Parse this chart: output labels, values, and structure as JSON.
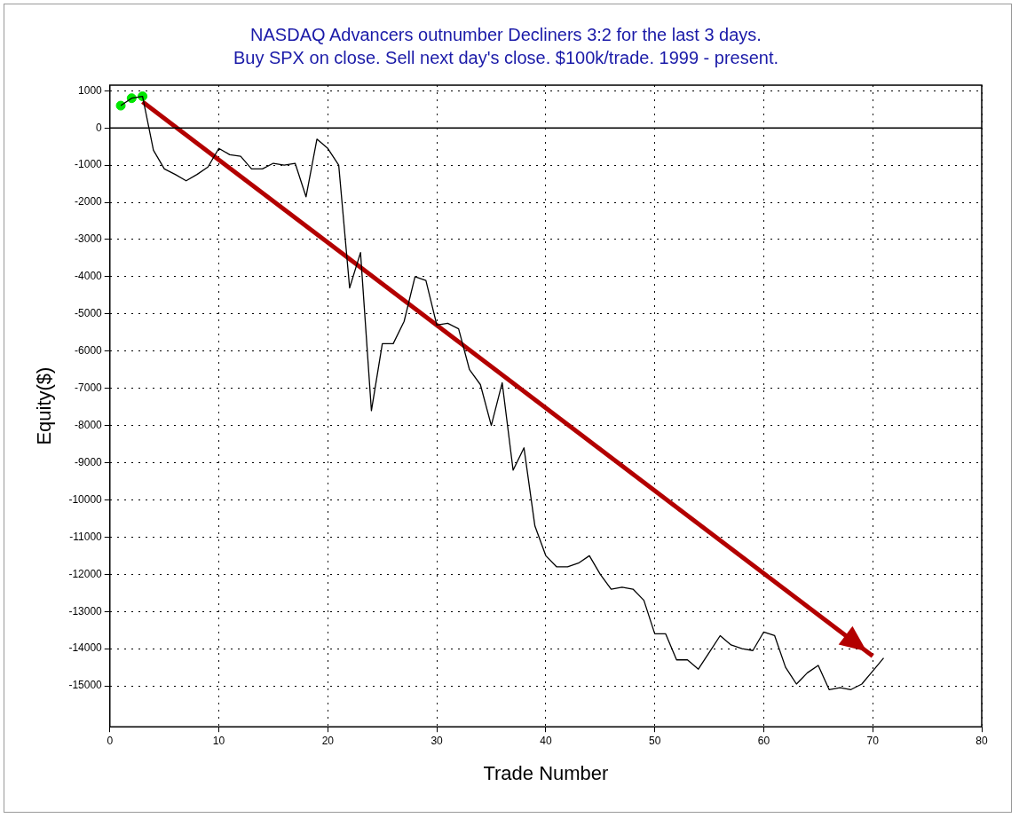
{
  "chart_data": {
    "type": "line",
    "title": "NASDAQ Advancers outnumber Decliners 3:2 for the last 3 days.",
    "subtitle": "Buy SPX on close. Sell next day's close. $100k/trade. 1999 - present.",
    "xlabel": "Trade Number",
    "ylabel": "Equity($)",
    "xlim": [
      0,
      80
    ],
    "xticks": [
      0,
      10,
      20,
      30,
      40,
      50,
      60,
      70,
      80
    ],
    "ylim": [
      -16100,
      1150
    ],
    "yticks": [
      1000,
      0,
      -1000,
      -2000,
      -3000,
      -4000,
      -5000,
      -6000,
      -7000,
      -8000,
      -9000,
      -10000,
      -11000,
      -12000,
      -13000,
      -14000,
      -15000
    ],
    "grid": true,
    "legend": false,
    "line_style": "solid",
    "ref_lines": [
      {
        "axis": "y",
        "value": 0,
        "color": "#000000",
        "line_style": "solid"
      }
    ],
    "series": [
      {
        "type": "line",
        "color": "#000000",
        "marker": "none",
        "x": [
          1,
          2,
          3,
          4,
          5,
          6,
          7,
          8,
          9,
          10,
          11,
          12,
          13,
          14,
          15,
          16,
          17,
          18,
          19,
          20,
          21,
          22,
          23,
          24,
          25,
          26,
          27,
          28,
          29,
          30,
          31,
          32,
          33,
          34,
          35,
          36,
          37,
          38,
          39,
          40,
          41,
          42,
          43,
          44,
          45,
          46,
          47,
          48,
          49,
          50,
          51,
          52,
          53,
          54,
          55,
          56,
          57,
          58,
          59,
          60,
          61,
          62,
          63,
          64,
          65,
          66,
          67,
          68,
          69,
          70,
          71
        ],
        "values": [
          600,
          800,
          850,
          -600,
          -1100,
          -1250,
          -1420,
          -1250,
          -1050,
          -550,
          -720,
          -760,
          -1100,
          -1100,
          -950,
          -1000,
          -950,
          -1850,
          -300,
          -550,
          -1000,
          -4300,
          -3350,
          -7600,
          -5800,
          -5800,
          -5200,
          -4000,
          -4100,
          -5300,
          -5250,
          -5400,
          -6500,
          -6900,
          -8000,
          -6850,
          -9200,
          -8600,
          -10700,
          -11500,
          -11800,
          -11800,
          -11700,
          -11500,
          -12000,
          -12400,
          -12350,
          -12400,
          -12700,
          -13600,
          -13600,
          -14300,
          -14300,
          -14550,
          -14100,
          -13650,
          -13900,
          -14000,
          -14050,
          -13550,
          -13650,
          -14500,
          -14950,
          -14650,
          -14450,
          -15100,
          -15050,
          -15100,
          -14950,
          -14600,
          -14250
        ]
      },
      {
        "type": "scatter",
        "color": "#00e600",
        "marker": "circle",
        "x": [
          1,
          2,
          3
        ],
        "values": [
          600,
          800,
          850
        ]
      },
      {
        "type": "line",
        "color": "#b30000",
        "marker": "none",
        "x": [
          3,
          70
        ],
        "values": [
          700,
          -14200
        ]
      }
    ]
  }
}
